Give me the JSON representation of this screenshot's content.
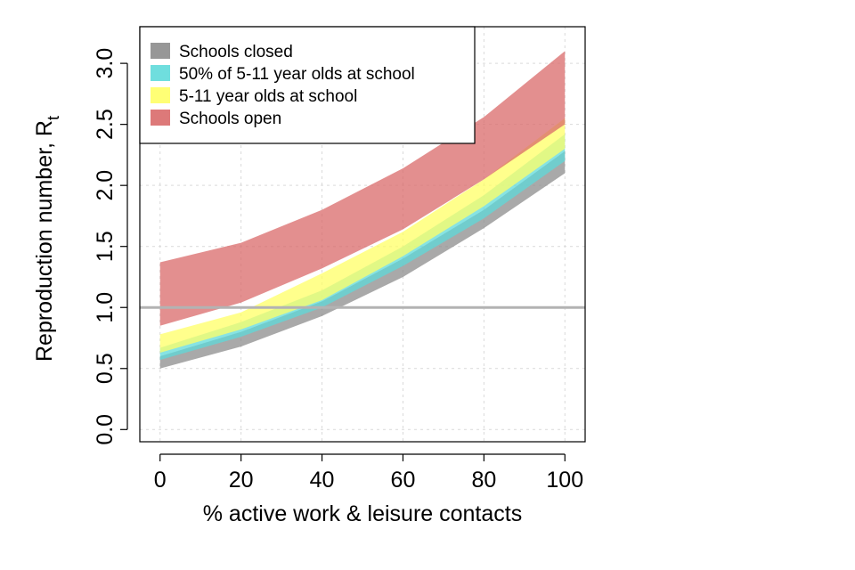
{
  "chart_data": {
    "type": "area",
    "xlabel": "% active work & leisure contacts",
    "ylabel": "Reproduction number, R",
    "ylabel_subscript": "t",
    "xlim": [
      -5,
      105
    ],
    "ylim": [
      -0.1,
      3.3
    ],
    "x_ticks": [
      0,
      20,
      40,
      60,
      80,
      100
    ],
    "y_ticks": [
      0.0,
      0.5,
      1.0,
      1.5,
      2.0,
      2.5,
      3.0
    ],
    "x_tick_labels": [
      "0",
      "20",
      "40",
      "60",
      "80",
      "100"
    ],
    "y_tick_labels": [
      "0.0",
      "0.5",
      "1.0",
      "1.5",
      "2.0",
      "2.5",
      "3.0"
    ],
    "grid": true,
    "reference_line_y": 1.0,
    "legend_position": "top-left",
    "x": [
      0,
      20,
      40,
      60,
      80,
      100
    ],
    "series": [
      {
        "name": "Schools closed",
        "color": "#8c8c8c",
        "lower": [
          0.5,
          0.68,
          0.93,
          1.25,
          1.65,
          2.1
        ],
        "upper": [
          0.6,
          0.8,
          1.05,
          1.4,
          1.8,
          2.28
        ]
      },
      {
        "name": "50% of 5-11 year olds at school",
        "color": "#5fdada",
        "lower": [
          0.57,
          0.76,
          1.0,
          1.34,
          1.73,
          2.2
        ],
        "upper": [
          0.67,
          0.88,
          1.14,
          1.5,
          1.92,
          2.42
        ]
      },
      {
        "name": "5-11 year olds at school",
        "color": "#ffff66",
        "lower": [
          0.63,
          0.82,
          1.06,
          1.42,
          1.83,
          2.3
        ],
        "upper": [
          0.78,
          0.96,
          1.28,
          1.62,
          2.05,
          2.55
        ]
      },
      {
        "name": "Schools open",
        "color": "#d96a6a",
        "lower": [
          0.85,
          1.04,
          1.32,
          1.64,
          2.05,
          2.5
        ],
        "upper": [
          1.37,
          1.53,
          1.8,
          2.14,
          2.56,
          3.1
        ]
      }
    ]
  }
}
